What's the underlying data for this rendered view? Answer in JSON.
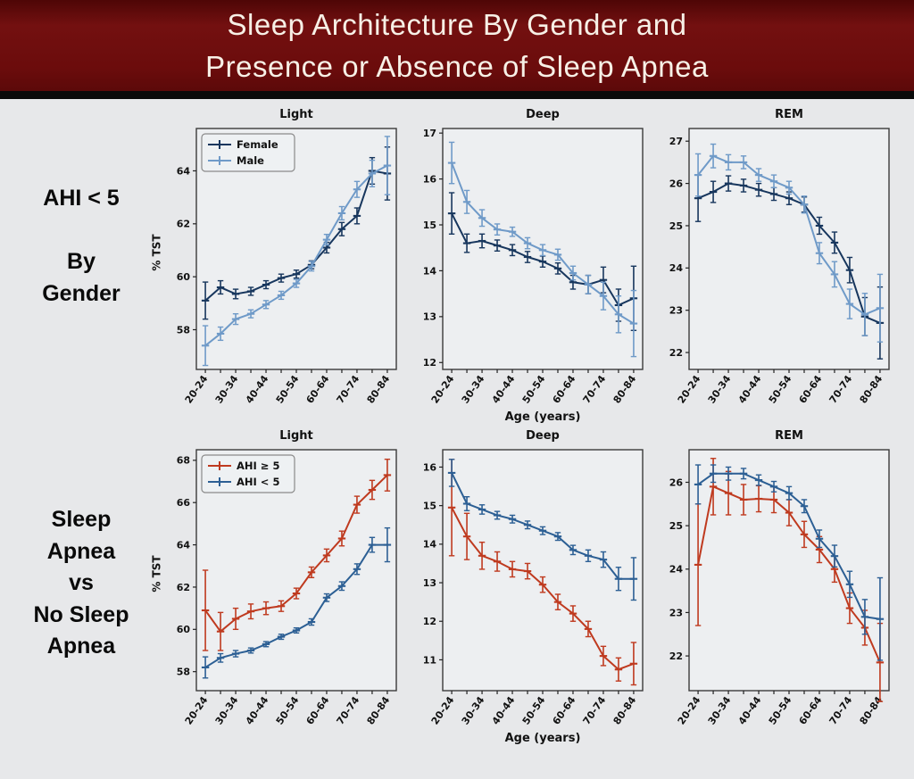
{
  "title": {
    "line1": "Sleep Architecture By Gender and",
    "line2": "Presence or Absence of Sleep Apnea"
  },
  "rows": [
    {
      "label": "AHI < 5\n\nBy\nGender"
    },
    {
      "label": "Sleep\nApnea\nvs\nNo Sleep\nApnea"
    }
  ],
  "axes": {
    "ylabel": "% TST",
    "xlabel": "Age (years)",
    "age_bins": [
      "20-24",
      "25-29",
      "30-34",
      "35-39",
      "40-44",
      "45-49",
      "50-54",
      "55-59",
      "60-64",
      "65-69",
      "70-74",
      "75-79",
      "80-84"
    ],
    "xtick_labels_shown": [
      "20-24",
      "30-34",
      "40-44",
      "50-54",
      "60-64",
      "70-74",
      "80-84"
    ]
  },
  "colors": {
    "title_bg": "#6b0c0c",
    "title_text": "#f7f0e6",
    "page_bg": "#e7e8ea",
    "panel_bg": "#edeff1",
    "panel_border": "#3b3b3b",
    "female": "#17365d",
    "male": "#6f9ac8",
    "ahi_ge5": "#bf3a1f",
    "ahi_lt5": "#2c5f94"
  },
  "chart_data": [
    {
      "type": "line",
      "title": "Light",
      "group": "AHI < 5 By Gender",
      "ylim": [
        56.5,
        65.6
      ],
      "yticks": [
        58,
        60,
        62,
        64
      ],
      "show_legend": true,
      "series": [
        {
          "name": "Female",
          "color": "female",
          "values": [
            59.1,
            59.6,
            59.35,
            59.45,
            59.7,
            59.95,
            60.1,
            60.45,
            61.1,
            61.8,
            62.3,
            64.0,
            63.9
          ],
          "errors": [
            0.7,
            0.25,
            0.18,
            0.15,
            0.15,
            0.15,
            0.15,
            0.15,
            0.2,
            0.25,
            0.3,
            0.5,
            1.0
          ]
        },
        {
          "name": "Male",
          "color": "male",
          "values": [
            57.4,
            57.85,
            58.4,
            58.6,
            58.95,
            59.3,
            59.75,
            60.4,
            61.4,
            62.4,
            63.3,
            63.9,
            64.2
          ],
          "errors": [
            0.75,
            0.25,
            0.2,
            0.15,
            0.15,
            0.15,
            0.15,
            0.18,
            0.2,
            0.25,
            0.3,
            0.5,
            1.1
          ]
        }
      ]
    },
    {
      "type": "line",
      "title": "Deep",
      "group": "AHI < 5 By Gender",
      "xlabel": "Age (years)",
      "ylim": [
        11.85,
        17.1
      ],
      "yticks": [
        12,
        13,
        14,
        15,
        16,
        17
      ],
      "show_legend": false,
      "series": [
        {
          "name": "Female",
          "color": "female",
          "values": [
            15.25,
            14.6,
            14.65,
            14.55,
            14.45,
            14.3,
            14.2,
            14.05,
            13.75,
            13.7,
            13.8,
            13.25,
            13.4
          ],
          "errors": [
            0.45,
            0.2,
            0.15,
            0.12,
            0.12,
            0.12,
            0.12,
            0.12,
            0.15,
            0.2,
            0.28,
            0.35,
            0.7
          ]
        },
        {
          "name": "Male",
          "color": "male",
          "values": [
            16.35,
            15.5,
            15.15,
            14.9,
            14.85,
            14.6,
            14.45,
            14.35,
            13.95,
            13.7,
            13.45,
            13.05,
            12.85
          ],
          "errors": [
            0.45,
            0.25,
            0.18,
            0.12,
            0.1,
            0.12,
            0.12,
            0.12,
            0.15,
            0.2,
            0.3,
            0.4,
            0.72
          ]
        }
      ]
    },
    {
      "type": "line",
      "title": "REM",
      "group": "AHI < 5 By Gender",
      "ylim": [
        21.6,
        27.3
      ],
      "yticks": [
        22,
        23,
        24,
        25,
        26,
        27
      ],
      "show_legend": false,
      "series": [
        {
          "name": "Female",
          "color": "female",
          "values": [
            25.65,
            25.8,
            26.0,
            25.95,
            25.85,
            25.75,
            25.65,
            25.5,
            25.0,
            24.6,
            23.95,
            22.85,
            22.7
          ],
          "errors": [
            0.55,
            0.25,
            0.18,
            0.15,
            0.15,
            0.15,
            0.15,
            0.18,
            0.2,
            0.25,
            0.3,
            0.45,
            0.85
          ]
        },
        {
          "name": "Male",
          "color": "male",
          "values": [
            26.2,
            26.65,
            26.5,
            26.5,
            26.2,
            26.05,
            25.9,
            25.5,
            24.35,
            23.85,
            23.15,
            22.9,
            23.05
          ],
          "errors": [
            0.5,
            0.28,
            0.18,
            0.15,
            0.15,
            0.15,
            0.15,
            0.2,
            0.25,
            0.3,
            0.35,
            0.5,
            0.8
          ]
        }
      ]
    },
    {
      "type": "line",
      "title": "Light",
      "group": "Sleep Apnea vs No Sleep Apnea",
      "ylim": [
        57.1,
        68.5
      ],
      "yticks": [
        58,
        60,
        62,
        64,
        66,
        68
      ],
      "show_legend": true,
      "series": [
        {
          "name": "AHI ≥ 5",
          "color": "ahi_ge5",
          "values": [
            60.9,
            59.9,
            60.5,
            60.85,
            61.0,
            61.1,
            61.7,
            62.7,
            63.5,
            64.3,
            65.9,
            66.6,
            67.3
          ],
          "errors": [
            1.9,
            0.9,
            0.5,
            0.35,
            0.3,
            0.25,
            0.25,
            0.25,
            0.3,
            0.35,
            0.4,
            0.45,
            0.75
          ]
        },
        {
          "name": "AHI < 5",
          "color": "ahi_lt5",
          "values": [
            58.2,
            58.65,
            58.85,
            59.0,
            59.3,
            59.65,
            59.95,
            60.35,
            61.5,
            62.05,
            62.85,
            64.0,
            64.0
          ],
          "errors": [
            0.5,
            0.2,
            0.15,
            0.12,
            0.12,
            0.12,
            0.12,
            0.15,
            0.18,
            0.2,
            0.25,
            0.35,
            0.8
          ]
        }
      ]
    },
    {
      "type": "line",
      "title": "Deep",
      "group": "Sleep Apnea vs No Sleep Apnea",
      "xlabel": "Age (years)",
      "ylim": [
        10.2,
        16.45
      ],
      "yticks": [
        11,
        12,
        13,
        14,
        15,
        16
      ],
      "show_legend": false,
      "series": [
        {
          "name": "AHI ≥ 5",
          "color": "ahi_ge5",
          "values": [
            14.95,
            14.2,
            13.7,
            13.55,
            13.35,
            13.3,
            12.95,
            12.5,
            12.2,
            11.8,
            11.1,
            10.75,
            10.9
          ],
          "errors": [
            1.25,
            0.6,
            0.35,
            0.25,
            0.2,
            0.2,
            0.2,
            0.2,
            0.2,
            0.2,
            0.25,
            0.3,
            0.55
          ]
        },
        {
          "name": "AHI < 5",
          "color": "ahi_lt5",
          "values": [
            15.85,
            15.05,
            14.9,
            14.75,
            14.65,
            14.5,
            14.35,
            14.2,
            13.85,
            13.7,
            13.6,
            13.1,
            13.1
          ],
          "errors": [
            0.35,
            0.18,
            0.12,
            0.1,
            0.1,
            0.1,
            0.1,
            0.1,
            0.12,
            0.15,
            0.2,
            0.3,
            0.55
          ]
        }
      ]
    },
    {
      "type": "line",
      "title": "REM",
      "group": "Sleep Apnea vs No Sleep Apnea",
      "ylim": [
        21.2,
        26.75
      ],
      "yticks": [
        22,
        23,
        24,
        25,
        26
      ],
      "show_legend": false,
      "series": [
        {
          "name": "AHI ≥ 5",
          "color": "ahi_ge5",
          "values": [
            24.1,
            25.9,
            25.75,
            25.6,
            25.62,
            25.6,
            25.3,
            24.8,
            24.45,
            24.0,
            23.1,
            22.65,
            21.85
          ],
          "errors": [
            1.4,
            0.65,
            0.5,
            0.35,
            0.3,
            0.3,
            0.3,
            0.3,
            0.3,
            0.3,
            0.35,
            0.4,
            0.9
          ]
        },
        {
          "name": "AHI < 5",
          "color": "ahi_lt5",
          "values": [
            25.95,
            26.2,
            26.2,
            26.2,
            26.05,
            25.9,
            25.75,
            25.45,
            24.7,
            24.3,
            23.65,
            22.9,
            22.85
          ],
          "errors": [
            0.45,
            0.2,
            0.15,
            0.12,
            0.12,
            0.12,
            0.15,
            0.15,
            0.2,
            0.25,
            0.3,
            0.4,
            0.95
          ]
        }
      ]
    }
  ]
}
